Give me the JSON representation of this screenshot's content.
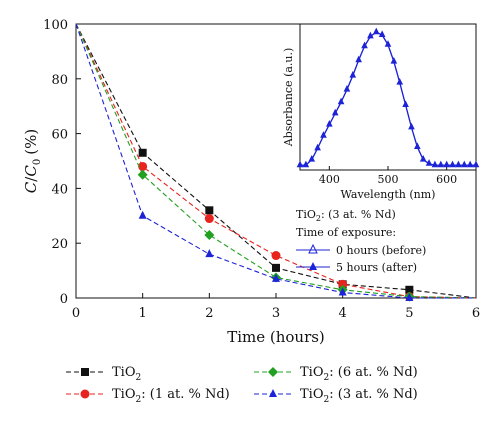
{
  "chart_data": [
    {
      "type": "line",
      "xlabel": "Time (hours)",
      "ylabel": {
        "C": "C",
        "sep": "/",
        "C0_base": "C",
        "C0_sub": "0",
        "unit": "(%)"
      },
      "xlim": [
        0,
        6
      ],
      "ylim": [
        0,
        100
      ],
      "xticks": [
        "0",
        "1",
        "2",
        "3",
        "4",
        "5",
        "6"
      ],
      "yticks": [
        "0",
        "20",
        "40",
        "60",
        "80",
        "100"
      ],
      "grid": false,
      "legend_position": "bottom",
      "series": [
        {
          "name_base": "TiO",
          "name_sub": "2",
          "name_rest": "",
          "color": "#111111",
          "marker": "square",
          "x": [
            0,
            1,
            2,
            3,
            4,
            5,
            6
          ],
          "y": [
            100,
            53,
            32,
            11,
            5,
            3,
            0
          ]
        },
        {
          "name_base": "TiO",
          "name_sub": "2",
          "name_rest": ": (1 at. % Nd)",
          "color": "#e8221e",
          "marker": "circle",
          "x": [
            0,
            1,
            2,
            3,
            4,
            5,
            6
          ],
          "y": [
            100,
            48,
            29,
            15.5,
            5,
            0.5,
            0
          ]
        },
        {
          "name_base": "TiO",
          "name_sub": "2",
          "name_rest": ": (6 at. % Nd)",
          "color": "#22a022",
          "marker": "diamond",
          "x": [
            0,
            1,
            2,
            3,
            4,
            5,
            6
          ],
          "y": [
            100,
            45,
            23,
            7.5,
            3,
            0.5,
            0
          ]
        },
        {
          "name_base": "TiO",
          "name_sub": "2",
          "name_rest": ": (3 at. % Nd)",
          "color": "#1d23d6",
          "marker": "triangle",
          "x": [
            0,
            1,
            2,
            3,
            4,
            5,
            6
          ],
          "y": [
            100,
            30,
            16,
            7,
            2,
            0,
            0
          ]
        }
      ]
    },
    {
      "type": "line",
      "xlabel": "Wavelength (nm)",
      "ylabel": "Absorbance (a.u.)",
      "xlim": [
        350,
        650
      ],
      "ylim": [
        0,
        1
      ],
      "xticks": [
        "400",
        "500",
        "600"
      ],
      "annotation_title": {
        "base": "TiO",
        "sub": "2",
        "rest": ": (3 at. % Nd)"
      },
      "annotation_subtitle": "Time of exposure:",
      "series": [
        {
          "name": "0 hours (before)",
          "color": "#1d23d6",
          "marker": "triangle-open",
          "x": [
            350,
            360,
            370,
            380,
            390,
            400,
            410,
            420,
            430,
            440,
            450,
            460,
            470,
            480,
            490,
            500,
            510,
            520,
            530,
            540,
            550,
            560,
            570,
            580,
            590,
            600,
            610,
            620,
            630,
            640,
            650
          ],
          "y": [
            0.02,
            0.02,
            0.06,
            0.14,
            0.23,
            0.31,
            0.39,
            0.47,
            0.56,
            0.66,
            0.77,
            0.87,
            0.94,
            0.97,
            0.95,
            0.88,
            0.76,
            0.61,
            0.45,
            0.29,
            0.15,
            0.06,
            0.03,
            0.02,
            0.02,
            0.02,
            0.02,
            0.02,
            0.02,
            0.02,
            0.02
          ]
        },
        {
          "name": "5 hours (after)",
          "color": "#1d23d6",
          "marker": "triangle",
          "x": [
            350,
            360,
            370,
            380,
            390,
            400,
            410,
            420,
            430,
            440,
            450,
            460,
            470,
            480,
            490,
            500,
            510,
            520,
            530,
            540,
            550,
            560,
            570,
            580,
            590,
            600,
            610,
            620,
            630,
            640,
            650
          ],
          "y": [
            0.02,
            0.02,
            0.06,
            0.14,
            0.23,
            0.31,
            0.39,
            0.47,
            0.56,
            0.66,
            0.77,
            0.87,
            0.94,
            0.97,
            0.95,
            0.88,
            0.76,
            0.61,
            0.45,
            0.29,
            0.15,
            0.06,
            0.03,
            0.02,
            0.02,
            0.02,
            0.02,
            0.02,
            0.02,
            0.02,
            0.02
          ]
        }
      ]
    }
  ]
}
